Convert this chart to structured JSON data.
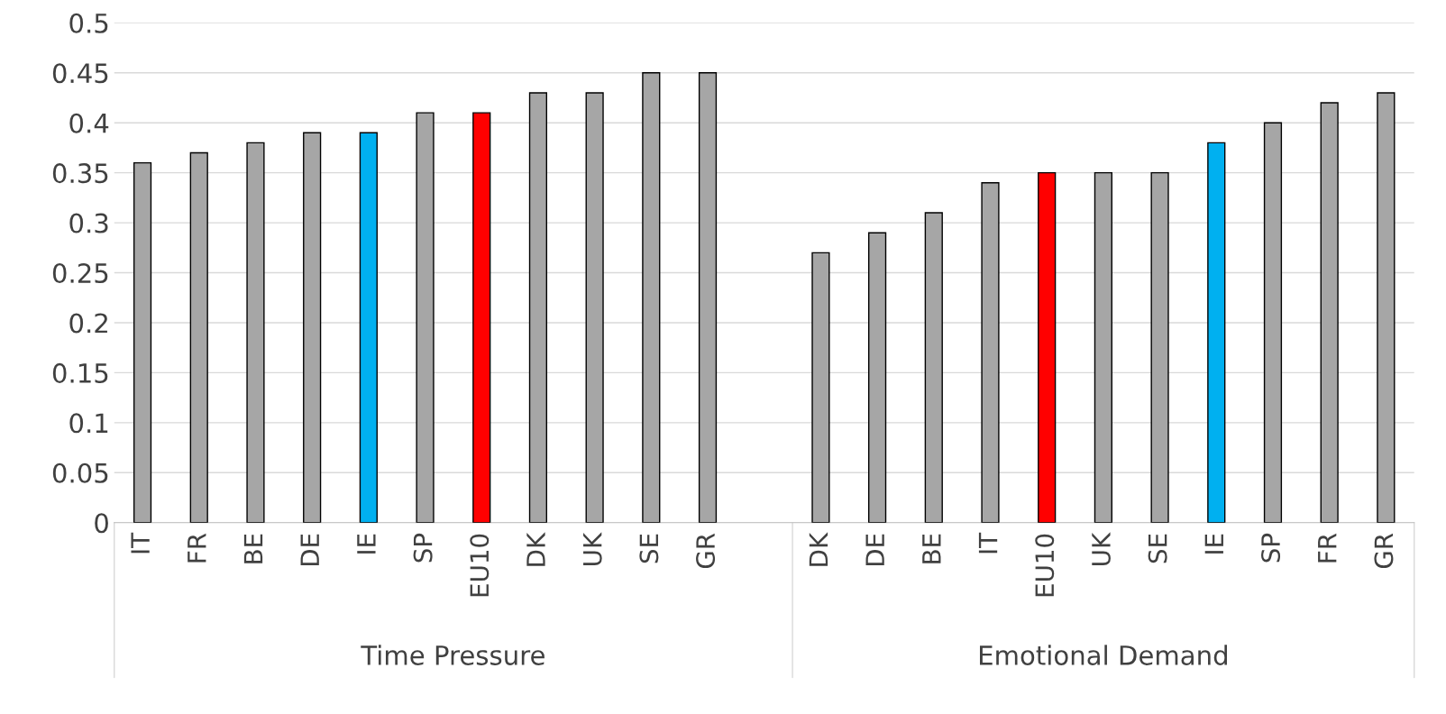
{
  "chart_data": {
    "type": "bar",
    "categories": [
      "IT",
      "FR",
      "BE",
      "DE",
      "IE",
      "SP",
      "EU10",
      "DK",
      "UK",
      "SE",
      "GR",
      null,
      "DK",
      "DE",
      "BE",
      "IT",
      "EU10",
      "UK",
      "SE",
      "IE",
      "SP",
      "FR",
      "GR"
    ],
    "values": [
      0.36,
      0.37,
      0.38,
      0.39,
      0.39,
      0.41,
      0.41,
      0.43,
      0.43,
      0.45,
      0.45,
      null,
      0.27,
      0.29,
      0.31,
      0.34,
      0.35,
      0.35,
      0.35,
      0.38,
      0.4,
      0.42,
      0.43
    ],
    "colors": [
      "#a6a6a6",
      "#a6a6a6",
      "#a6a6a6",
      "#a6a6a6",
      "#00b0f0",
      "#a6a6a6",
      "#ff0000",
      "#a6a6a6",
      "#a6a6a6",
      "#a6a6a6",
      "#a6a6a6",
      null,
      "#a6a6a6",
      "#a6a6a6",
      "#a6a6a6",
      "#a6a6a6",
      "#ff0000",
      "#a6a6a6",
      "#a6a6a6",
      "#00b0f0",
      "#a6a6a6",
      "#a6a6a6",
      "#a6a6a6"
    ],
    "annotations": [
      "Time Pressure",
      "Emotional Demand"
    ],
    "ylim": [
      0,
      0.5
    ],
    "yticks": [
      0,
      0.05,
      0.1,
      0.15,
      0.2,
      0.25,
      0.3,
      0.35,
      0.4,
      0.45,
      0.5
    ],
    "grid": "y",
    "legend": false
  }
}
